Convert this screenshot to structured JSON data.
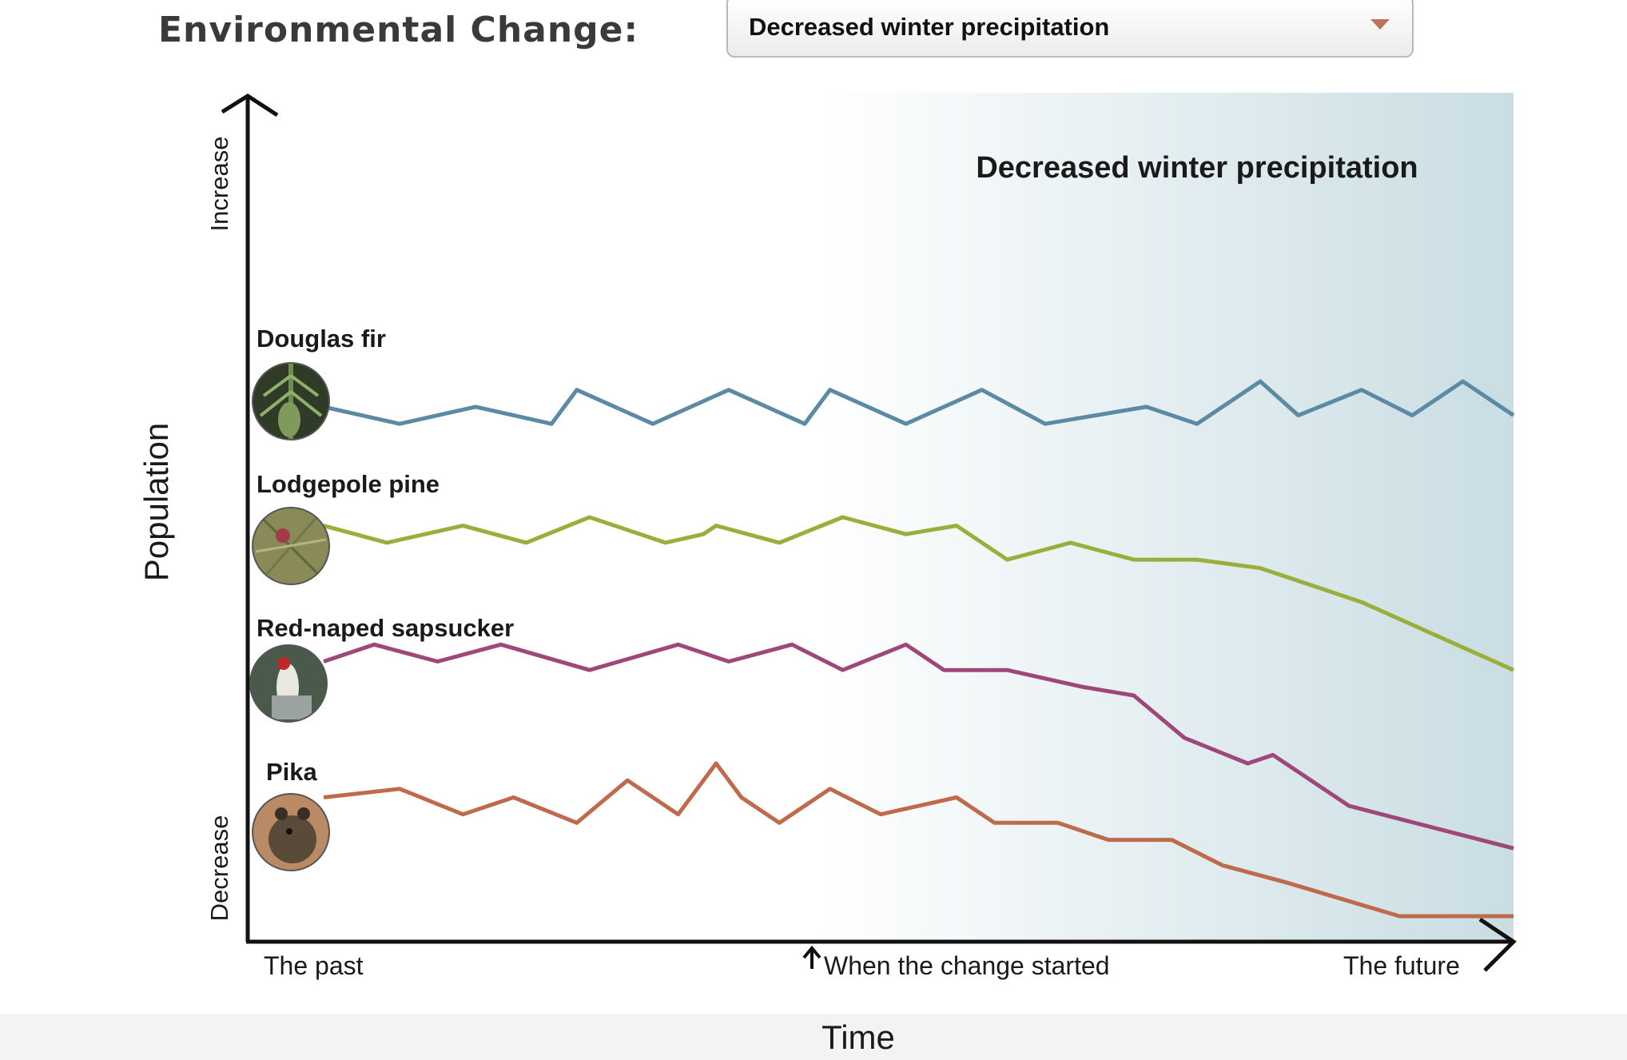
{
  "header": {
    "label": "Environmental Change:",
    "select_value": "Decreased winter precipitation"
  },
  "chart_data": {
    "type": "line",
    "period_label": "Decreased winter precipitation",
    "xlabel": "Time",
    "ylabel": "Population",
    "y_high_label": "Increase",
    "y_low_label": "Decrease",
    "x_labels": {
      "start": "The past",
      "change": "When the change started",
      "end": "The future"
    },
    "change_start_x": 0.45,
    "shading_color": "#c9dde3",
    "series": [
      {
        "name": "Douglas fir",
        "color": "#5b8aa4",
        "icon": "douglas-fir-photo",
        "points": [
          [
            0.06,
            0.63
          ],
          [
            0.12,
            0.61
          ],
          [
            0.18,
            0.63
          ],
          [
            0.24,
            0.61
          ],
          [
            0.26,
            0.65
          ],
          [
            0.32,
            0.61
          ],
          [
            0.38,
            0.65
          ],
          [
            0.44,
            0.61
          ],
          [
            0.46,
            0.65
          ],
          [
            0.52,
            0.61
          ],
          [
            0.58,
            0.65
          ],
          [
            0.63,
            0.61
          ],
          [
            0.71,
            0.63
          ],
          [
            0.75,
            0.61
          ],
          [
            0.8,
            0.66
          ],
          [
            0.83,
            0.62
          ],
          [
            0.88,
            0.65
          ],
          [
            0.92,
            0.62
          ],
          [
            0.96,
            0.66
          ],
          [
            1.0,
            0.62
          ]
        ]
      },
      {
        "name": "Lodgepole pine",
        "color": "#9aae3c",
        "icon": "lodgepole-pine-photo",
        "points": [
          [
            0.06,
            0.49
          ],
          [
            0.11,
            0.47
          ],
          [
            0.17,
            0.49
          ],
          [
            0.22,
            0.47
          ],
          [
            0.27,
            0.5
          ],
          [
            0.33,
            0.47
          ],
          [
            0.36,
            0.48
          ],
          [
            0.37,
            0.49
          ],
          [
            0.42,
            0.47
          ],
          [
            0.47,
            0.5
          ],
          [
            0.52,
            0.48
          ],
          [
            0.56,
            0.49
          ],
          [
            0.6,
            0.45
          ],
          [
            0.65,
            0.47
          ],
          [
            0.7,
            0.45
          ],
          [
            0.75,
            0.45
          ],
          [
            0.8,
            0.44
          ],
          [
            0.88,
            0.4
          ],
          [
            1.0,
            0.32
          ]
        ]
      },
      {
        "name": "Red-naped sapsucker",
        "color": "#9e477a",
        "icon": "red-naped-sapsucker-photo",
        "points": [
          [
            0.06,
            0.33
          ],
          [
            0.1,
            0.35
          ],
          [
            0.15,
            0.33
          ],
          [
            0.2,
            0.35
          ],
          [
            0.27,
            0.32
          ],
          [
            0.34,
            0.35
          ],
          [
            0.38,
            0.33
          ],
          [
            0.43,
            0.35
          ],
          [
            0.47,
            0.32
          ],
          [
            0.52,
            0.35
          ],
          [
            0.55,
            0.32
          ],
          [
            0.6,
            0.32
          ],
          [
            0.66,
            0.3
          ],
          [
            0.7,
            0.29
          ],
          [
            0.74,
            0.24
          ],
          [
            0.79,
            0.21
          ],
          [
            0.81,
            0.22
          ],
          [
            0.87,
            0.16
          ],
          [
            1.0,
            0.11
          ]
        ]
      },
      {
        "name": "Pika",
        "color": "#bf6a4b",
        "icon": "pika-photo",
        "points": [
          [
            0.06,
            0.17
          ],
          [
            0.12,
            0.18
          ],
          [
            0.17,
            0.15
          ],
          [
            0.21,
            0.17
          ],
          [
            0.26,
            0.14
          ],
          [
            0.3,
            0.19
          ],
          [
            0.34,
            0.15
          ],
          [
            0.37,
            0.21
          ],
          [
            0.39,
            0.17
          ],
          [
            0.42,
            0.14
          ],
          [
            0.46,
            0.18
          ],
          [
            0.5,
            0.15
          ],
          [
            0.56,
            0.17
          ],
          [
            0.59,
            0.14
          ],
          [
            0.64,
            0.14
          ],
          [
            0.68,
            0.12
          ],
          [
            0.73,
            0.12
          ],
          [
            0.77,
            0.09
          ],
          [
            0.82,
            0.07
          ],
          [
            0.91,
            0.03
          ],
          [
            1.0,
            0.03
          ]
        ]
      }
    ]
  }
}
